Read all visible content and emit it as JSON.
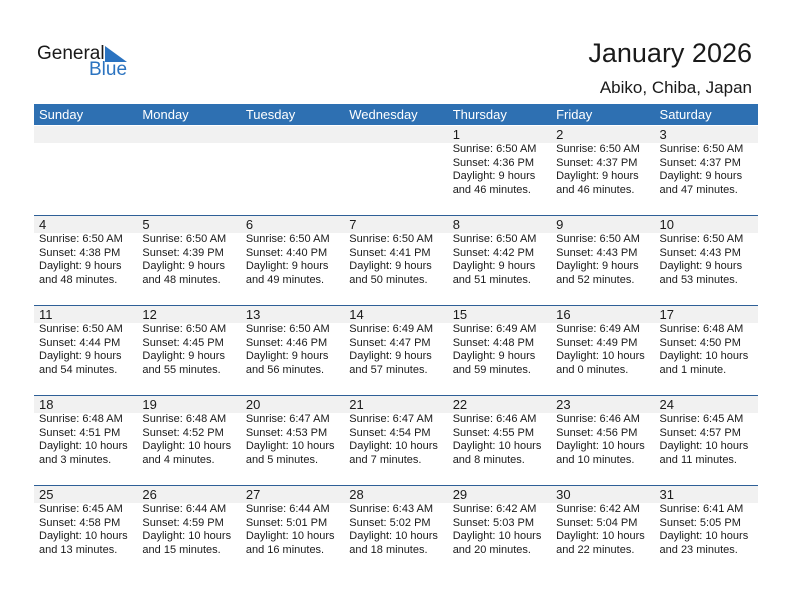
{
  "logo": {
    "text1": "General",
    "text2": "Blue"
  },
  "header": {
    "title": "January 2026",
    "location": "Abiko, Chiba, Japan"
  },
  "days": [
    "Sunday",
    "Monday",
    "Tuesday",
    "Wednesday",
    "Thursday",
    "Friday",
    "Saturday"
  ],
  "weeks": [
    [
      null,
      null,
      null,
      null,
      {
        "day": "1",
        "sunrise": "Sunrise: 6:50 AM",
        "sunset": "Sunset: 4:36 PM",
        "daylight": "Daylight: 9 hours",
        "minutes": "and 46 minutes."
      },
      {
        "day": "2",
        "sunrise": "Sunrise: 6:50 AM",
        "sunset": "Sunset: 4:37 PM",
        "daylight": "Daylight: 9 hours",
        "minutes": "and 46 minutes."
      },
      {
        "day": "3",
        "sunrise": "Sunrise: 6:50 AM",
        "sunset": "Sunset: 4:37 PM",
        "daylight": "Daylight: 9 hours",
        "minutes": "and 47 minutes."
      }
    ],
    [
      {
        "day": "4",
        "sunrise": "Sunrise: 6:50 AM",
        "sunset": "Sunset: 4:38 PM",
        "daylight": "Daylight: 9 hours",
        "minutes": "and 48 minutes."
      },
      {
        "day": "5",
        "sunrise": "Sunrise: 6:50 AM",
        "sunset": "Sunset: 4:39 PM",
        "daylight": "Daylight: 9 hours",
        "minutes": "and 48 minutes."
      },
      {
        "day": "6",
        "sunrise": "Sunrise: 6:50 AM",
        "sunset": "Sunset: 4:40 PM",
        "daylight": "Daylight: 9 hours",
        "minutes": "and 49 minutes."
      },
      {
        "day": "7",
        "sunrise": "Sunrise: 6:50 AM",
        "sunset": "Sunset: 4:41 PM",
        "daylight": "Daylight: 9 hours",
        "minutes": "and 50 minutes."
      },
      {
        "day": "8",
        "sunrise": "Sunrise: 6:50 AM",
        "sunset": "Sunset: 4:42 PM",
        "daylight": "Daylight: 9 hours",
        "minutes": "and 51 minutes."
      },
      {
        "day": "9",
        "sunrise": "Sunrise: 6:50 AM",
        "sunset": "Sunset: 4:43 PM",
        "daylight": "Daylight: 9 hours",
        "minutes": "and 52 minutes."
      },
      {
        "day": "10",
        "sunrise": "Sunrise: 6:50 AM",
        "sunset": "Sunset: 4:43 PM",
        "daylight": "Daylight: 9 hours",
        "minutes": "and 53 minutes."
      }
    ],
    [
      {
        "day": "11",
        "sunrise": "Sunrise: 6:50 AM",
        "sunset": "Sunset: 4:44 PM",
        "daylight": "Daylight: 9 hours",
        "minutes": "and 54 minutes."
      },
      {
        "day": "12",
        "sunrise": "Sunrise: 6:50 AM",
        "sunset": "Sunset: 4:45 PM",
        "daylight": "Daylight: 9 hours",
        "minutes": "and 55 minutes."
      },
      {
        "day": "13",
        "sunrise": "Sunrise: 6:50 AM",
        "sunset": "Sunset: 4:46 PM",
        "daylight": "Daylight: 9 hours",
        "minutes": "and 56 minutes."
      },
      {
        "day": "14",
        "sunrise": "Sunrise: 6:49 AM",
        "sunset": "Sunset: 4:47 PM",
        "daylight": "Daylight: 9 hours",
        "minutes": "and 57 minutes."
      },
      {
        "day": "15",
        "sunrise": "Sunrise: 6:49 AM",
        "sunset": "Sunset: 4:48 PM",
        "daylight": "Daylight: 9 hours",
        "minutes": "and 59 minutes."
      },
      {
        "day": "16",
        "sunrise": "Sunrise: 6:49 AM",
        "sunset": "Sunset: 4:49 PM",
        "daylight": "Daylight: 10 hours",
        "minutes": "and 0 minutes."
      },
      {
        "day": "17",
        "sunrise": "Sunrise: 6:48 AM",
        "sunset": "Sunset: 4:50 PM",
        "daylight": "Daylight: 10 hours",
        "minutes": "and 1 minute."
      }
    ],
    [
      {
        "day": "18",
        "sunrise": "Sunrise: 6:48 AM",
        "sunset": "Sunset: 4:51 PM",
        "daylight": "Daylight: 10 hours",
        "minutes": "and 3 minutes."
      },
      {
        "day": "19",
        "sunrise": "Sunrise: 6:48 AM",
        "sunset": "Sunset: 4:52 PM",
        "daylight": "Daylight: 10 hours",
        "minutes": "and 4 minutes."
      },
      {
        "day": "20",
        "sunrise": "Sunrise: 6:47 AM",
        "sunset": "Sunset: 4:53 PM",
        "daylight": "Daylight: 10 hours",
        "minutes": "and 5 minutes."
      },
      {
        "day": "21",
        "sunrise": "Sunrise: 6:47 AM",
        "sunset": "Sunset: 4:54 PM",
        "daylight": "Daylight: 10 hours",
        "minutes": "and 7 minutes."
      },
      {
        "day": "22",
        "sunrise": "Sunrise: 6:46 AM",
        "sunset": "Sunset: 4:55 PM",
        "daylight": "Daylight: 10 hours",
        "minutes": "and 8 minutes."
      },
      {
        "day": "23",
        "sunrise": "Sunrise: 6:46 AM",
        "sunset": "Sunset: 4:56 PM",
        "daylight": "Daylight: 10 hours",
        "minutes": "and 10 minutes."
      },
      {
        "day": "24",
        "sunrise": "Sunrise: 6:45 AM",
        "sunset": "Sunset: 4:57 PM",
        "daylight": "Daylight: 10 hours",
        "minutes": "and 11 minutes."
      }
    ],
    [
      {
        "day": "25",
        "sunrise": "Sunrise: 6:45 AM",
        "sunset": "Sunset: 4:58 PM",
        "daylight": "Daylight: 10 hours",
        "minutes": "and 13 minutes."
      },
      {
        "day": "26",
        "sunrise": "Sunrise: 6:44 AM",
        "sunset": "Sunset: 4:59 PM",
        "daylight": "Daylight: 10 hours",
        "minutes": "and 15 minutes."
      },
      {
        "day": "27",
        "sunrise": "Sunrise: 6:44 AM",
        "sunset": "Sunset: 5:01 PM",
        "daylight": "Daylight: 10 hours",
        "minutes": "and 16 minutes."
      },
      {
        "day": "28",
        "sunrise": "Sunrise: 6:43 AM",
        "sunset": "Sunset: 5:02 PM",
        "daylight": "Daylight: 10 hours",
        "minutes": "and 18 minutes."
      },
      {
        "day": "29",
        "sunrise": "Sunrise: 6:42 AM",
        "sunset": "Sunset: 5:03 PM",
        "daylight": "Daylight: 10 hours",
        "minutes": "and 20 minutes."
      },
      {
        "day": "30",
        "sunrise": "Sunrise: 6:42 AM",
        "sunset": "Sunset: 5:04 PM",
        "daylight": "Daylight: 10 hours",
        "minutes": "and 22 minutes."
      },
      {
        "day": "31",
        "sunrise": "Sunrise: 6:41 AM",
        "sunset": "Sunset: 5:05 PM",
        "daylight": "Daylight: 10 hours",
        "minutes": "and 23 minutes."
      }
    ]
  ]
}
